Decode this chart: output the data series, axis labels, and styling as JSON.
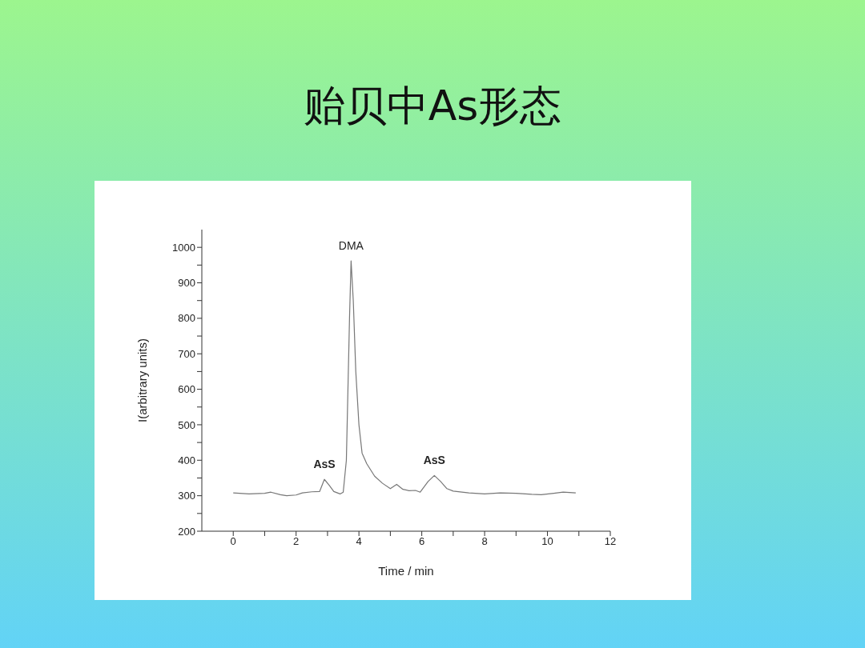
{
  "chart_data": {
    "type": "line",
    "title": "贻贝中As形态",
    "xlabel": "Time / min",
    "ylabel": "I(arbitrary units)",
    "x": [
      0,
      0.5,
      1.0,
      1.2,
      1.5,
      1.7,
      2.0,
      2.2,
      2.5,
      2.75,
      2.9,
      3.05,
      3.2,
      3.4,
      3.5,
      3.6,
      3.7,
      3.75,
      3.82,
      3.9,
      4.0,
      4.1,
      4.25,
      4.5,
      4.75,
      5.0,
      5.2,
      5.4,
      5.6,
      5.8,
      5.95,
      6.2,
      6.4,
      6.6,
      6.8,
      7.0,
      7.5,
      8.0,
      8.5,
      9.0,
      9.5,
      9.8,
      10.2,
      10.5,
      10.9
    ],
    "series": [
      {
        "color": "#777777",
        "values": [
          308,
          305,
          307,
          310,
          303,
          300,
          302,
          308,
          311,
          312,
          346,
          330,
          312,
          305,
          310,
          400,
          800,
          962,
          850,
          650,
          500,
          420,
          390,
          355,
          335,
          320,
          332,
          318,
          314,
          315,
          310,
          340,
          357,
          340,
          320,
          313,
          308,
          305,
          308,
          307,
          304,
          303,
          307,
          310,
          308
        ]
      }
    ],
    "xlim": [
      -1,
      12
    ],
    "xticks": [
      0,
      {
        "value": 1,
        "label": null
      },
      2,
      {
        "value": 3,
        "label": null
      },
      4,
      {
        "value": 5,
        "label": null
      },
      6,
      {
        "value": 7,
        "label": null
      },
      8,
      {
        "value": 9,
        "label": null
      },
      10,
      {
        "value": 11,
        "label": null
      },
      12
    ],
    "ylim": [
      200,
      1050
    ],
    "yticks": [
      200,
      {
        "value": 250,
        "label": null
      },
      300,
      {
        "value": 350,
        "label": null
      },
      400,
      {
        "value": 450,
        "label": null
      },
      500,
      {
        "value": 550,
        "label": null
      },
      600,
      {
        "value": 650,
        "label": null
      },
      700,
      {
        "value": 750,
        "label": null
      },
      800,
      {
        "value": 850,
        "label": null
      },
      900,
      {
        "value": 950,
        "label": null
      },
      1000
    ],
    "annotations": [
      {
        "text": "AsS",
        "x": 2.9,
        "y": 346
      },
      {
        "text": "DMA",
        "x": 3.75,
        "y": 962
      },
      {
        "text": "AsS",
        "x": 6.4,
        "y": 357
      }
    ],
    "grid": false,
    "legend": false,
    "marker": "none",
    "line_style": "solid"
  }
}
